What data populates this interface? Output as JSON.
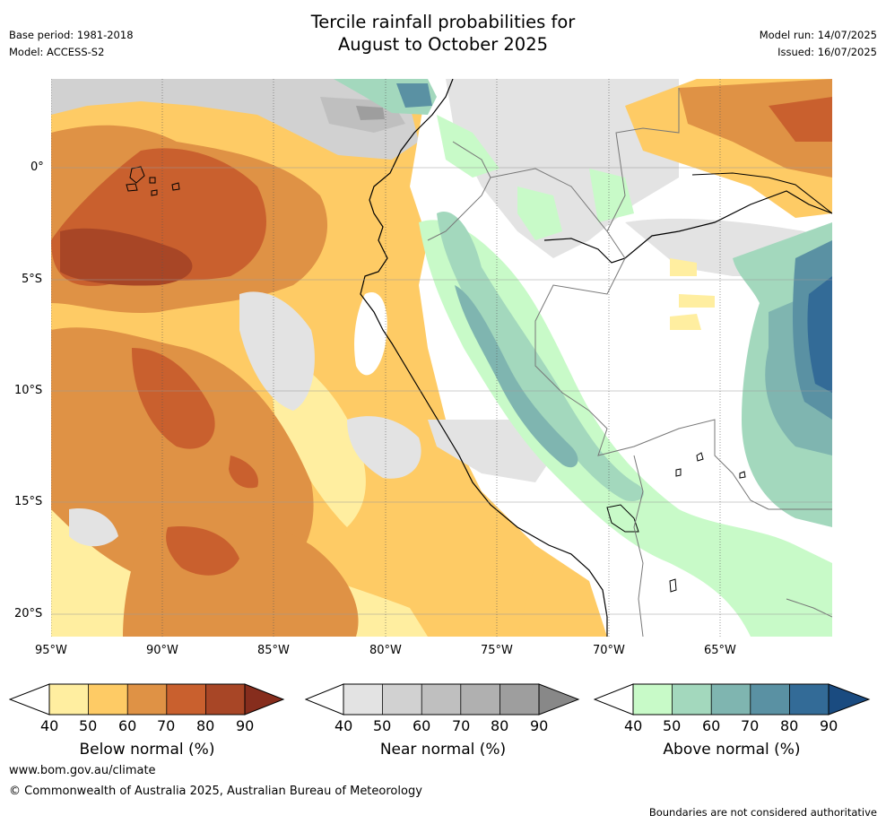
{
  "header": {
    "title_line1": "Tercile rainfall probabilities for",
    "title_line2": "August to October 2025",
    "base_period": "Base period: 1981-2018",
    "model": "Model: ACCESS-S2",
    "model_run": "Model run: 14/07/2025",
    "issued": "Issued: 16/07/2025"
  },
  "map": {
    "lat_labels": [
      "0°",
      "5°S",
      "10°S",
      "15°S",
      "20°S"
    ],
    "lon_labels": [
      "95°W",
      "90°W",
      "85°W",
      "80°W",
      "75°W",
      "70°W",
      "65°W"
    ]
  },
  "colorbars": [
    {
      "title": "Below normal (%)",
      "ticks": [
        "40",
        "50",
        "60",
        "70",
        "80",
        "90"
      ],
      "colors": [
        "#ffffff",
        "#ffeea0",
        "#fecb65",
        "#df9245",
        "#c9602e",
        "#a84626",
        "#862d1d"
      ]
    },
    {
      "title": "Near normal (%)",
      "ticks": [
        "40",
        "50",
        "60",
        "70",
        "80",
        "90"
      ],
      "colors": [
        "#ffffff",
        "#e3e3e3",
        "#d1d1d1",
        "#bfbfbf",
        "#b0b0b0",
        "#9e9e9e",
        "#888888"
      ]
    },
    {
      "title": "Above normal (%)",
      "ticks": [
        "40",
        "50",
        "60",
        "70",
        "80",
        "90"
      ],
      "colors": [
        "#ffffff",
        "#c8fac8",
        "#a3d8bd",
        "#7fb5b0",
        "#5a91a3",
        "#336b97",
        "#1a4b80"
      ]
    }
  ],
  "footer": {
    "website": "www.bom.gov.au/climate",
    "copyright": "© Commonwealth of Australia 2025, Australian Bureau of Meteorology",
    "disclaimer": "Boundaries are not considered authoritative"
  }
}
